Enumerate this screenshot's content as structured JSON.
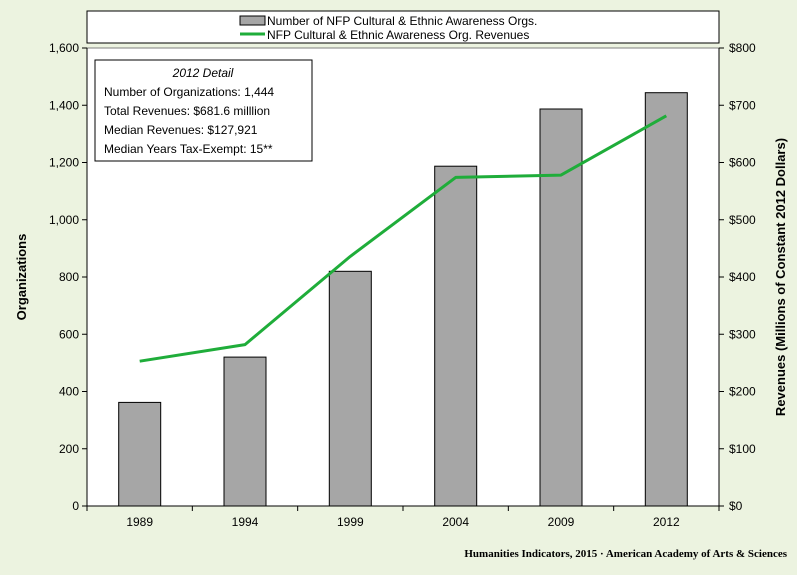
{
  "chart_data": {
    "type": "bar",
    "categories": [
      "1989",
      "1994",
      "1999",
      "2004",
      "2009",
      "2012"
    ],
    "series": [
      {
        "name": "Number of NFP Cultural & Ethnic Awareness Orgs.",
        "type": "bar",
        "axis": "left",
        "color": "#a6a6a6",
        "values": [
          362,
          520,
          820,
          1187,
          1387,
          1444
        ]
      },
      {
        "name": "NFP Cultural & Ethnic Awareness Org. Revenues",
        "type": "line",
        "axis": "right",
        "color": "#1fad3a",
        "values": [
          253,
          282,
          436,
          574,
          578,
          681.6
        ]
      }
    ],
    "ylabel": "Organizations",
    "y2label": "Revenues (Millions of Constant 2012 Dollars)",
    "ylim": [
      0,
      1600
    ],
    "y2lim": [
      0,
      800
    ],
    "yticks": [
      "0",
      "200",
      "400",
      "600",
      "800",
      "1,000",
      "1,200",
      "1,400",
      "1,600"
    ],
    "y2ticks": [
      "$0",
      "$100",
      "$200",
      "$300",
      "$400",
      "$500",
      "$600",
      "$700",
      "$800"
    ],
    "grid": false,
    "legend_position": "top"
  },
  "detail_box": {
    "title": "2012 Detail",
    "lines": [
      "Number of Organizations: 1,444",
      "Total Revenues:  $681.6 milllion",
      "Median Revenues:  $127,921",
      "Median Years Tax-Exempt: 15**"
    ]
  },
  "footer": {
    "credit": "Humanities Indicators, 2015 · American Academy of Arts & Sciences"
  },
  "colors": {
    "background": "#ecf3e0",
    "plot_area": "#ffffff",
    "bar": "#a6a6a6",
    "line": "#1fad3a"
  }
}
